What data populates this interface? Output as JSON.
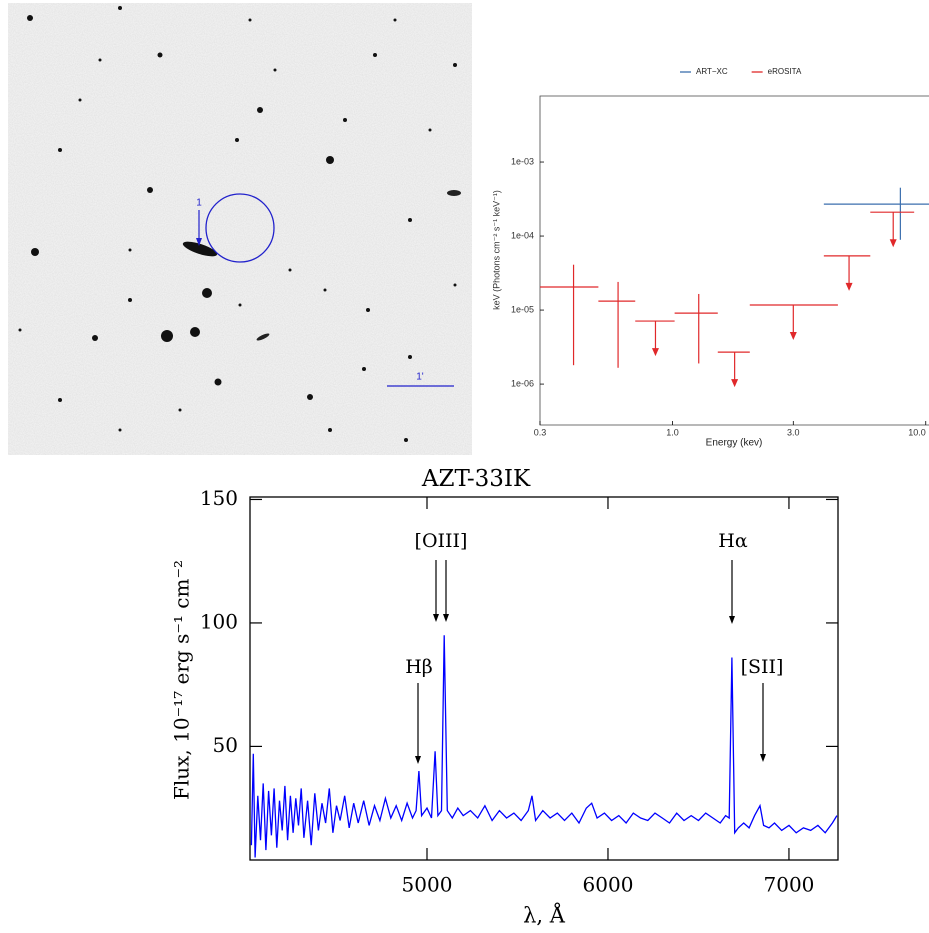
{
  "image_panel": {
    "source_label": "1",
    "scale_label": "1'"
  },
  "chart_data": [
    {
      "type": "errorbar",
      "xlabel": "Energy (kev)",
      "ylabel": "keV (Photons cm⁻² s⁻¹ keV⁻¹)",
      "xscale": "log",
      "yscale": "log",
      "xlim": [
        0.3,
        10.3
      ],
      "ylim": [
        2.8e-07,
        0.0078
      ],
      "xticks": [
        0.3,
        {
          "value": 1,
          "label": "1.0"
        },
        {
          "value": 3,
          "label": "3.0"
        },
        {
          "value": 10,
          "label": "10.0"
        }
      ],
      "yticks": [
        {
          "value": 1e-06,
          "label": "1e-06"
        },
        {
          "value": 1e-05,
          "label": "1e-05"
        },
        {
          "value": 0.0001,
          "label": "1e-04"
        },
        {
          "value": 0.001,
          "label": "1e-03"
        }
      ],
      "legend": "top",
      "series": [
        {
          "name": "ART−XC",
          "color": "#3b6fae",
          "x": [
            7.94
          ],
          "x_low": [
            3.96
          ],
          "x_high": [
            12
          ],
          "y": [
            0.00027
          ],
          "y_low": [
            8.9e-05
          ],
          "y_high": [
            0.00045
          ]
        },
        {
          "name": "eROSITA",
          "color": "#e0282a",
          "x": [
            0.407,
            0.61,
            0.857,
            1.27,
            1.76,
            3.0,
            4.98,
            7.44
          ],
          "x_low": [
            0.3,
            0.51,
            0.713,
            1.02,
            1.51,
            2.02,
            3.96,
            6.04
          ],
          "x_high": [
            0.51,
            0.713,
            1.02,
            1.51,
            2.02,
            4.5,
            6.04,
            9.0
          ],
          "y": [
            2.05e-05,
            1.32e-05,
            7.1e-06,
            9.1e-06,
            2.7e-06,
            1.17e-05,
            5.4e-05,
            0.00021
          ],
          "y_low": [
            1.8e-06,
            1.66e-06,
            null,
            1.9e-06,
            null,
            null,
            null,
            null
          ],
          "y_high": [
            4.1e-05,
            2.4e-05,
            null,
            1.65e-05,
            null,
            null,
            null,
            null
          ]
        }
      ]
    },
    {
      "type": "line",
      "title": "AZT-33IK",
      "xlabel": "λ, Å",
      "ylabel": "Flux, 10⁻¹⁷ erg s⁻¹ cm⁻²",
      "xlim": [
        4022,
        7271
      ],
      "ylim": [
        4,
        151
      ],
      "xticks": [
        5000,
        6000,
        7000
      ],
      "yticks": [
        50,
        100,
        150
      ],
      "annotations": [
        "[OIII]",
        "Hβ",
        "Hα",
        "[SII]"
      ],
      "series": [
        {
          "color": "#0000ff",
          "x": [
            4030,
            4040,
            4050,
            4065,
            4080,
            4095,
            4110,
            4125,
            4140,
            4155,
            4170,
            4185,
            4200,
            4215,
            4230,
            4245,
            4260,
            4275,
            4290,
            4305,
            4320,
            4340,
            4360,
            4380,
            4400,
            4420,
            4440,
            4460,
            4480,
            4500,
            4520,
            4545,
            4570,
            4595,
            4620,
            4650,
            4680,
            4710,
            4740,
            4770,
            4800,
            4830,
            4860,
            4890,
            4920,
            4940,
            4955,
            4970,
            5000,
            5025,
            5045,
            5060,
            5080,
            5095,
            5112,
            5140,
            5170,
            5200,
            5240,
            5280,
            5320,
            5360,
            5400,
            5440,
            5480,
            5520,
            5560,
            5580,
            5600,
            5640,
            5680,
            5720,
            5760,
            5800,
            5840,
            5880,
            5910,
            5940,
            5980,
            6020,
            6060,
            6100,
            6140,
            6180,
            6220,
            6260,
            6300,
            6340,
            6380,
            6420,
            6460,
            6500,
            6540,
            6580,
            6620,
            6650,
            6670,
            6685,
            6700,
            6720,
            6750,
            6780,
            6810,
            6840,
            6860,
            6890,
            6920,
            6960,
            7000,
            7040,
            7080,
            7120,
            7160,
            7200,
            7240,
            7265
          ],
          "values": [
            10,
            47,
            5,
            30,
            12,
            35,
            8,
            32,
            14,
            33,
            9,
            28,
            16,
            34,
            12,
            30,
            15,
            29,
            18,
            33,
            13,
            28,
            10,
            31,
            16,
            27,
            19,
            33,
            15,
            26,
            20,
            30,
            17,
            27,
            19,
            28,
            18,
            26,
            20,
            29,
            21,
            26,
            20,
            27,
            21,
            24,
            40,
            22,
            25,
            21,
            48,
            22,
            24,
            95,
            24,
            21,
            25,
            22,
            24,
            21,
            26,
            20,
            24,
            21,
            23,
            20,
            24,
            30,
            20,
            24,
            21,
            23,
            20,
            23,
            19,
            25,
            27,
            21,
            23,
            20,
            22,
            19,
            23,
            21,
            20,
            23,
            21,
            19,
            23,
            20,
            22,
            20,
            23,
            21,
            19,
            22,
            21,
            86,
            15,
            17,
            19,
            17,
            22,
            26,
            18,
            17,
            19,
            16,
            18,
            15,
            17,
            16,
            18,
            15,
            19,
            22
          ]
        }
      ]
    }
  ]
}
